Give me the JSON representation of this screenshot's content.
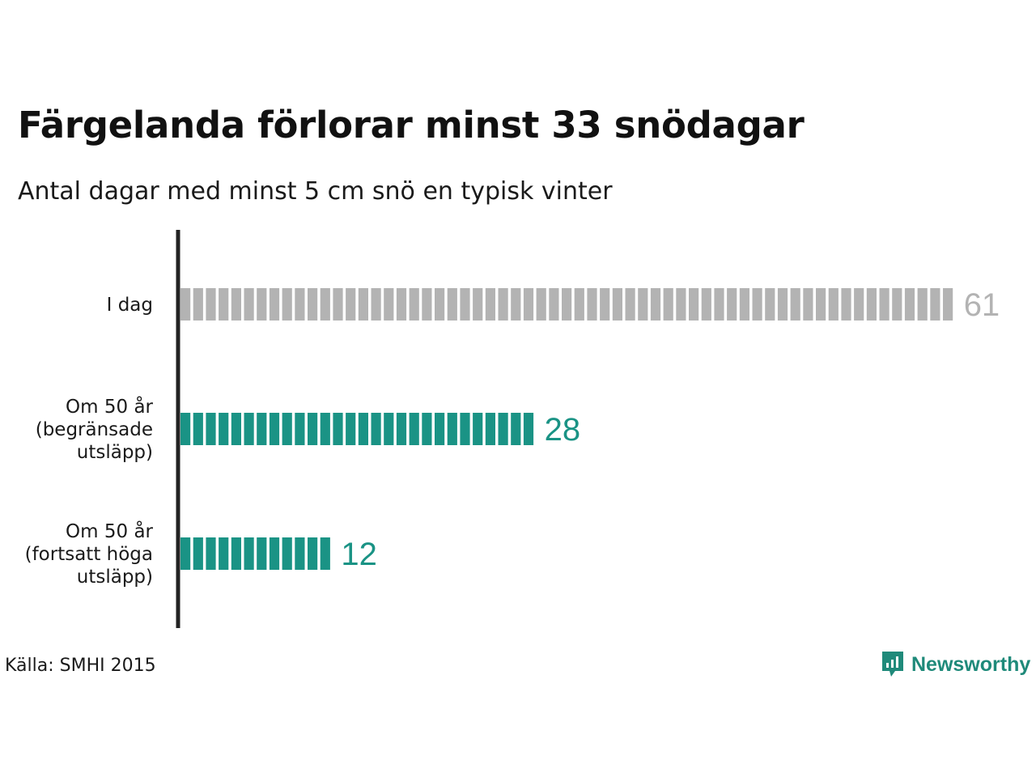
{
  "title": "Färgelanda förlorar minst 33 snödagar",
  "subtitle": "Antal dagar med minst 5 cm snö en typisk vinter",
  "source": "Källa: SMHI 2015",
  "logo": {
    "text": "Newsworthy",
    "icon": "newsworthy-chart-bubble-icon"
  },
  "colors": {
    "today": "#b3b3b3",
    "future": "#1a9385",
    "axis": "#222222"
  },
  "chart_data": {
    "type": "bar",
    "orientation": "horizontal",
    "categories": [
      [
        "I dag"
      ],
      [
        "Om 50 år",
        "(begränsade",
        "utsläpp)"
      ],
      [
        "Om 50 år",
        "(fortsatt höga",
        "utsläpp)"
      ]
    ],
    "values": [
      61,
      28,
      12
    ],
    "value_labels": [
      "61",
      "28",
      "12"
    ],
    "bar_colors": [
      "#b3b3b3",
      "#1a9385",
      "#1a9385"
    ],
    "style": "segmented bars, one segment per day",
    "xlabel": "",
    "ylabel": ""
  }
}
